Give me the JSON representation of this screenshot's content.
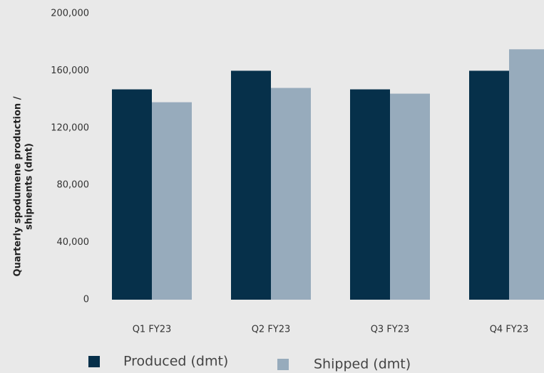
{
  "chart_data": {
    "type": "bar",
    "y_label": [
      "Quarterly spodumene production /",
      "shipments (dmt)"
    ],
    "categories": [
      "Q1 FY23",
      "Q2 FY23",
      "Q3 FY23",
      "Q4 FY23"
    ],
    "series": [
      {
        "name": "Produced (dmt)",
        "color": "#06304a",
        "values": [
          147000,
          160000,
          147000,
          160000
        ]
      },
      {
        "name": "Shipped (dmt)",
        "color": "#97abbc",
        "values": [
          138000,
          148000,
          144000,
          175000
        ]
      }
    ],
    "ylim": [
      0,
      200000
    ],
    "yticks": [
      0,
      {
        "value": 40000,
        "label": "40,000"
      },
      {
        "value": 80000,
        "label": "80,000"
      },
      {
        "value": 120000,
        "label": "120,000"
      },
      {
        "value": 160000,
        "label": "160,000"
      },
      {
        "value": 200000,
        "label": "200,000"
      }
    ],
    "grid": false,
    "legend": "bottom"
  }
}
